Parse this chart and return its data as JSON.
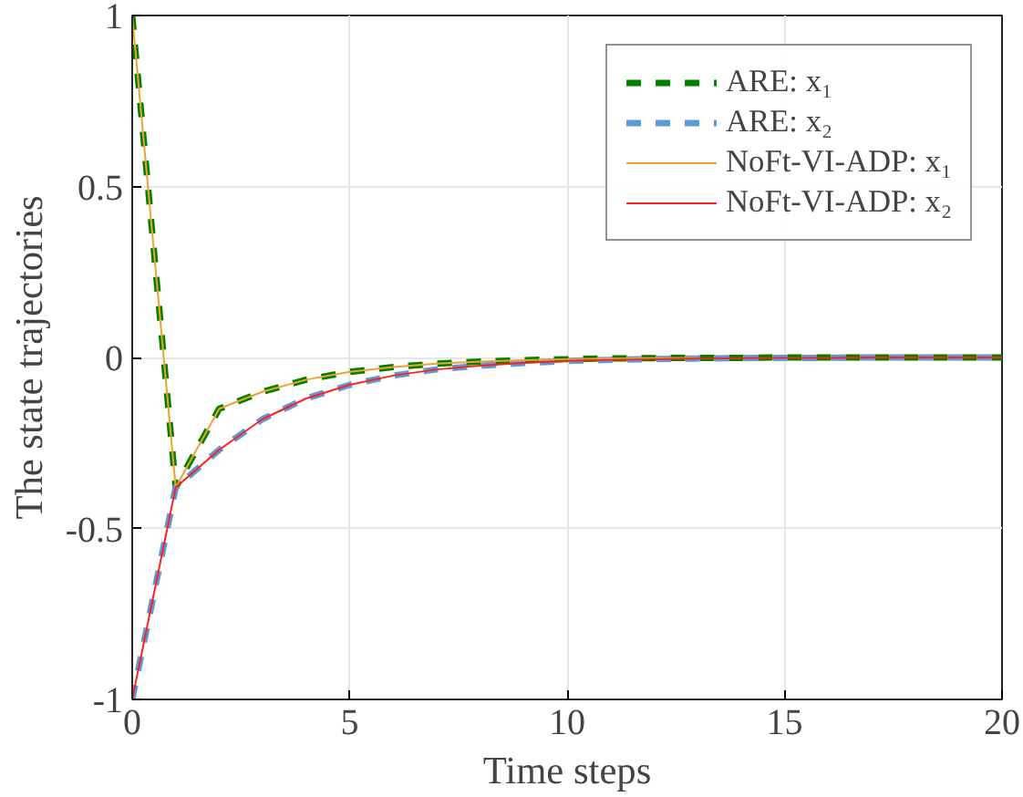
{
  "chart_data": {
    "type": "line",
    "xlabel": "Time steps",
    "ylabel": "The state trajectories",
    "x": [
      0,
      1,
      2,
      3,
      4,
      5,
      6,
      7,
      8,
      9,
      10,
      11,
      12,
      13,
      14,
      15,
      16,
      17,
      18,
      19,
      20
    ],
    "series": [
      {
        "name": "ARE: x₁",
        "color": "#008000",
        "line_style": "dashed",
        "values": [
          1,
          -0.38,
          -0.15,
          -0.1,
          -0.065,
          -0.042,
          -0.028,
          -0.018,
          -0.012,
          -0.008,
          -0.005,
          -0.003,
          -0.002,
          -0.001,
          -0.001,
          0,
          0,
          0,
          0,
          0,
          0
        ]
      },
      {
        "name": "ARE: x₂",
        "color": "#5b9bd5",
        "line_style": "dashed",
        "values": [
          -1,
          -0.38,
          -0.27,
          -0.18,
          -0.12,
          -0.08,
          -0.053,
          -0.035,
          -0.024,
          -0.016,
          -0.01,
          -0.007,
          -0.005,
          -0.003,
          -0.002,
          -0.001,
          -0.001,
          0,
          0,
          0,
          0
        ]
      },
      {
        "name": "NoFt-VI-ADP: x₁",
        "color": "#f0a030",
        "line_style": "solid",
        "values": [
          1,
          -0.38,
          -0.15,
          -0.1,
          -0.065,
          -0.042,
          -0.028,
          -0.018,
          -0.012,
          -0.008,
          -0.005,
          -0.003,
          -0.002,
          -0.001,
          null,
          null,
          null,
          null,
          null,
          null,
          null
        ]
      },
      {
        "name": "NoFt-VI-ADP: x₂",
        "color": "#ff2020",
        "line_style": "solid",
        "values": [
          -1,
          -0.38,
          -0.27,
          -0.18,
          -0.12,
          -0.08,
          -0.053,
          -0.035,
          -0.024,
          -0.016,
          -0.01,
          -0.007,
          -0.005,
          -0.003,
          -0.002,
          -0.001,
          -0.001,
          0,
          0,
          0,
          0
        ]
      }
    ],
    "xlim": [
      0,
      20
    ],
    "ylim": [
      -1,
      1
    ],
    "xticks": [
      0,
      5,
      10,
      15,
      20
    ],
    "yticks": [
      -1,
      -0.5,
      0,
      0.5,
      1
    ],
    "grid": true,
    "legend": "top right"
  }
}
